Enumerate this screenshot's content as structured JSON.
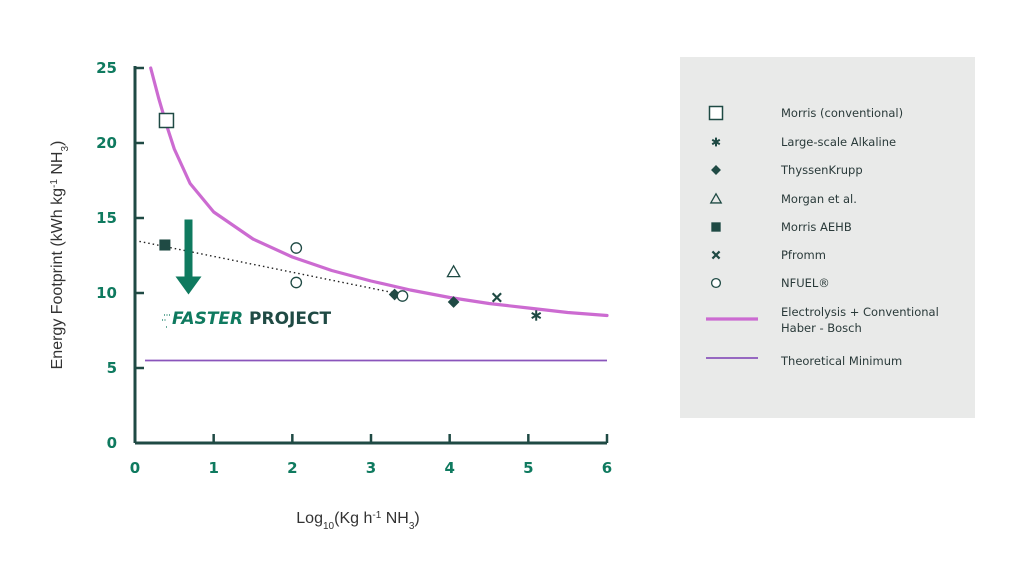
{
  "colors": {
    "axis": "#1f4a44",
    "tick": "#0f7a5f",
    "marker": "#1f4a44",
    "curve": "#cc6bd1",
    "minimum": "#8a55bb",
    "arrow": "#0f7a5f",
    "legend_bg": "#e9eae9"
  },
  "brand": {
    "logo_text_italic": "FASTER",
    "logo_text": "PROJECT",
    "icon": "arrow-down-icon"
  },
  "chart_data": {
    "type": "scatter",
    "xlabel_main": "Log",
    "xlabel_sub": "10",
    "xlabel_rest": "(Kg h",
    "xlabel_sup": "-1",
    "xlabel_tail": " NH",
    "xlabel_tail_sub": "3",
    "xlabel_close": ")",
    "ylabel_main": "Energy Footprint (kWh kg",
    "ylabel_sup": "-1",
    "ylabel_tail": " NH",
    "ylabel_tail_sub": "3",
    "ylabel_close": ")",
    "xlim": [
      0,
      6
    ],
    "ylim": [
      0,
      25
    ],
    "xticks": [
      "0",
      "1",
      "2",
      "3",
      "4",
      "5",
      "6"
    ],
    "yticks": [
      "0",
      "5",
      "10",
      "15",
      "20",
      "25"
    ],
    "series": [
      {
        "name": "Morris (conventional)",
        "marker": "open-square",
        "points": [
          [
            0.4,
            21.5
          ]
        ]
      },
      {
        "name": "Large-scale Alkaline",
        "marker": "asterisk",
        "points": [
          [
            5.1,
            8.5
          ]
        ]
      },
      {
        "name": "ThyssenKrupp",
        "marker": "filled-diamond",
        "points": [
          [
            3.3,
            9.9
          ],
          [
            4.05,
            9.4
          ]
        ]
      },
      {
        "name": "Morgan et al.",
        "marker": "open-triangle",
        "points": [
          [
            4.05,
            11.4
          ]
        ]
      },
      {
        "name": "Morris AEHB",
        "marker": "filled-square",
        "points": [
          [
            0.38,
            13.2
          ]
        ]
      },
      {
        "name": "Pfromm",
        "marker": "cross",
        "points": [
          [
            4.6,
            9.7
          ]
        ]
      },
      {
        "name": "NFUEL®",
        "marker": "open-circle",
        "points": [
          [
            2.05,
            13.0
          ],
          [
            2.05,
            10.7
          ],
          [
            3.4,
            9.8
          ]
        ]
      }
    ],
    "lines": [
      {
        "name": "Electrolysis + Conventional Haber - Bosch",
        "name_line1": "Electrolysis + Conventional",
        "name_line2": "Haber - Bosch",
        "type": "curve",
        "x": [
          0.2,
          0.3,
          0.4,
          0.5,
          0.7,
          1.0,
          1.5,
          2.0,
          2.5,
          3.0,
          3.5,
          4.0,
          4.5,
          5.0,
          5.5,
          6.0
        ],
        "y": [
          25.0,
          23.0,
          21.2,
          19.6,
          17.3,
          15.4,
          13.6,
          12.4,
          11.5,
          10.8,
          10.2,
          9.7,
          9.3,
          9.0,
          8.7,
          8.5
        ]
      },
      {
        "name": "Theoretical Minimum",
        "type": "hline",
        "y": 5.5,
        "x": [
          0,
          6
        ]
      },
      {
        "name": "",
        "type": "trend-dotted",
        "x": [
          0,
          3.4
        ],
        "y": [
          13.5,
          9.9
        ]
      }
    ],
    "annotation_arrow": {
      "x": 0.68,
      "y_from": 14.9,
      "y_to": 9.9
    },
    "legend_position": "right"
  }
}
